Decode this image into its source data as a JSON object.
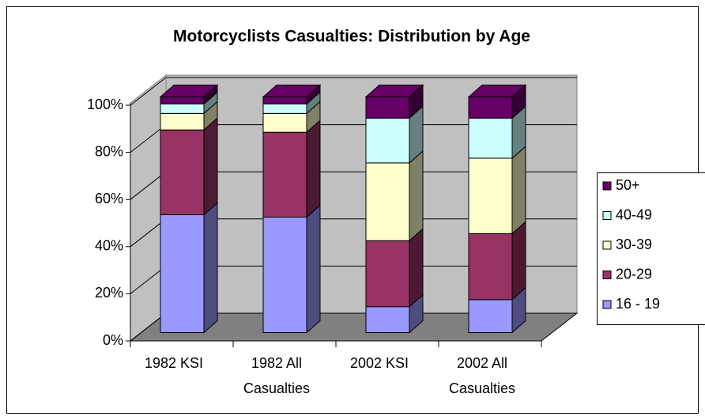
{
  "chart_data": {
    "type": "bar3d_stacked100",
    "title": "Motorcyclists Casualties: Distribution by Age",
    "categories": [
      "1982 KSI",
      "1982 All Casualties",
      "2002 KSI",
      "2002 All Casualties"
    ],
    "series": [
      {
        "name": "16 - 19",
        "color": "#9999ff",
        "values": [
          50,
          49,
          11,
          14
        ]
      },
      {
        "name": "20-29",
        "color": "#993366",
        "values": [
          36,
          36,
          28,
          28
        ]
      },
      {
        "name": "30-39",
        "color": "#ffffcc",
        "values": [
          7,
          8,
          33,
          32
        ]
      },
      {
        "name": "40-49",
        "color": "#ccffff",
        "values": [
          4,
          4,
          19,
          17
        ]
      },
      {
        "name": "50+",
        "color": "#660066",
        "values": [
          3,
          3,
          9,
          9
        ]
      }
    ],
    "ylim": [
      0,
      100
    ],
    "yticks": [
      {
        "value": 0,
        "label": "0%"
      },
      {
        "value": 20,
        "label": "20%"
      },
      {
        "value": 40,
        "label": "40%"
      },
      {
        "value": 60,
        "label": "60%"
      },
      {
        "value": 80,
        "label": "80%"
      },
      {
        "value": 100,
        "label": "100%"
      }
    ],
    "grid": true,
    "legend": "right"
  }
}
